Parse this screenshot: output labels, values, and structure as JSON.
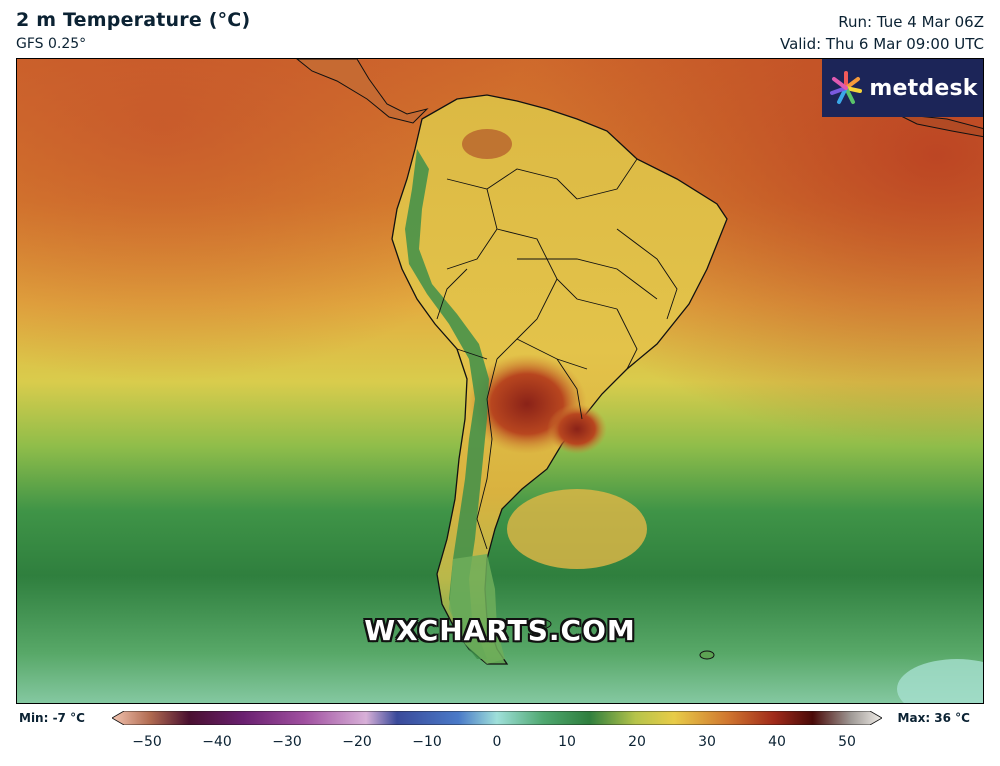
{
  "header": {
    "title": "2 m Temperature (°C)",
    "model": "GFS 0.25°",
    "run": "Run: Tue 4 Mar 06Z",
    "valid": "Valid: Thu 6 Mar 09:00 UTC"
  },
  "logo": {
    "text": "metdesk",
    "icon": "metdesk-starburst-icon"
  },
  "watermark": "WXCHARTS.COM",
  "legend": {
    "min_label": "Min: -7 °C",
    "max_label": "Max: 36 °C",
    "unit": "°C",
    "range": [
      -50,
      50
    ],
    "ticks": [
      "−50",
      "−40",
      "−30",
      "−20",
      "−10",
      "0",
      "10",
      "20",
      "30",
      "40",
      "50"
    ],
    "tick_values": [
      -50,
      -40,
      -30,
      -20,
      -10,
      0,
      10,
      20,
      30,
      40,
      50
    ],
    "colors": {
      "m50": "#f3c4b0",
      "m40": "#4a1030",
      "m30": "#8c2f8c",
      "m20": "#c98fc4",
      "m10": "#4a5ea8",
      "p0": "#8fd6d0",
      "p10": "#2f8f4e",
      "p20": "#e8cc48",
      "p30": "#c86428",
      "p40": "#6a1010",
      "p50": "#f0ede8"
    }
  },
  "map": {
    "region": "South America",
    "colors": {
      "ocean_warm": "#d0762f",
      "ocean_hot": "#c2552a",
      "ocean_mild": "#e6b041",
      "ocean_cool": "#c9cf4a",
      "ocean_green": "#5aa64a",
      "ocean_dark_green": "#2f7f3e",
      "ocean_teal": "#70b98d",
      "land_yellow": "#e8c24a",
      "land_hot": "#8e2a1c",
      "andes_green": "#3e8f4a"
    }
  }
}
